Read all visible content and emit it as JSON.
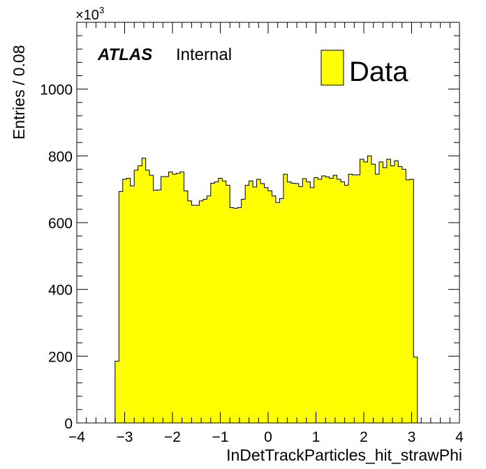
{
  "chart_data": {
    "type": "bar",
    "xlabel": "InDetTrackParticles_hit_strawPhi",
    "ylabel": "Entries / 0.08",
    "y_multiplier": "×10",
    "y_multiplier_exponent": "3",
    "xlim": [
      -4,
      4
    ],
    "ylim": [
      0,
      1200
    ],
    "x_ticks": [
      -4,
      -3,
      -2,
      -1,
      0,
      1,
      2,
      3,
      4
    ],
    "x_tick_labels": [
      "−4",
      "−3",
      "−2",
      "−1",
      "0",
      "1",
      "2",
      "3",
      "4"
    ],
    "y_ticks": [
      0,
      200,
      400,
      600,
      800,
      1000
    ],
    "y_tick_labels": [
      "0",
      "200",
      "400",
      "600",
      "800",
      "1000"
    ],
    "bin_width": 0.08,
    "bin_start": -3.2,
    "values": [
      185,
      693,
      730,
      733,
      710,
      757,
      770,
      793,
      757,
      742,
      697,
      698,
      738,
      738,
      752,
      745,
      748,
      752,
      695,
      665,
      652,
      652,
      665,
      670,
      680,
      718,
      722,
      733,
      725,
      712,
      645,
      643,
      645,
      670,
      712,
      725,
      707,
      730,
      717,
      705,
      695,
      680,
      660,
      672,
      745,
      722,
      718,
      717,
      708,
      732,
      722,
      705,
      735,
      730,
      740,
      737,
      733,
      742,
      730,
      722,
      712,
      745,
      743,
      743,
      790,
      782,
      800,
      775,
      745,
      782,
      765,
      790,
      770,
      785,
      768,
      760,
      728,
      730,
      197
    ],
    "series": [
      {
        "name": "Data",
        "color": "#ffff00"
      }
    ],
    "legend_position": "top-right",
    "grid": false,
    "annotations": {
      "atlas": "ATLAS",
      "internal": "Internal"
    }
  }
}
